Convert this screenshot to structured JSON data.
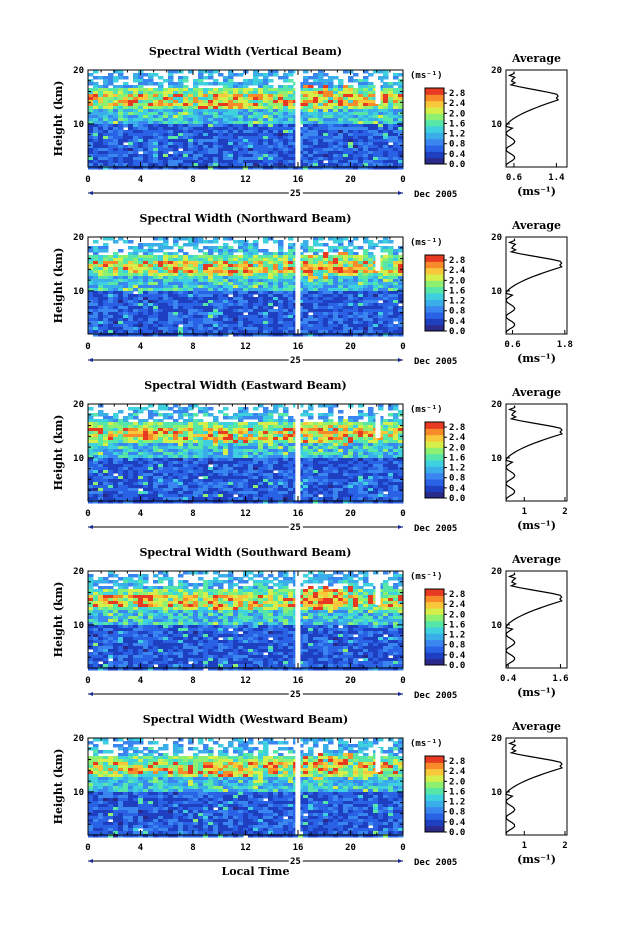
{
  "chart_data": [
    {
      "type": "heatmap",
      "title": "Spectral Width (Vertical Beam)",
      "ylabel": "Height (km)",
      "ylim": [
        2,
        20
      ],
      "yticks": [
        "20",
        "10"
      ],
      "xticks": [
        "0",
        "4",
        "8",
        "12",
        "16",
        "20",
        "0"
      ],
      "xlim": [
        0,
        24
      ],
      "day_label": "25",
      "date_label": "Dec 2005",
      "colorbar": {
        "unit": "(ms⁻¹)",
        "ticks": [
          "2.8",
          "2.4",
          "2.0",
          "1.6",
          "1.2",
          "0.8",
          "0.4",
          "0.0"
        ]
      },
      "average": {
        "title": "Average",
        "xlabel": "(ms⁻¹)",
        "xticks": [
          "0.6",
          "1.4"
        ],
        "yticks": [
          "20",
          "10"
        ],
        "xlim": [
          0.45,
          1.6
        ],
        "peak": 1.45
      }
    },
    {
      "type": "heatmap",
      "title": "Spectral Width (Northward Beam)",
      "ylabel": "Height (km)",
      "ylim": [
        2,
        20
      ],
      "yticks": [
        "20",
        "10"
      ],
      "xticks": [
        "0",
        "4",
        "8",
        "12",
        "16",
        "20",
        "0"
      ],
      "xlim": [
        0,
        24
      ],
      "day_label": "25",
      "date_label": "Dec 2005",
      "colorbar": {
        "unit": "(ms⁻¹)",
        "ticks": [
          "2.8",
          "2.4",
          "2.0",
          "1.6",
          "1.2",
          "0.8",
          "0.4",
          "0.0"
        ]
      },
      "average": {
        "title": "Average",
        "xlabel": "(ms⁻¹)",
        "xticks": [
          "0.6",
          "1.8"
        ],
        "yticks": [
          "20",
          "10"
        ],
        "xlim": [
          0.45,
          1.85
        ],
        "peak": 1.75
      }
    },
    {
      "type": "heatmap",
      "title": "Spectral Width (Eastward Beam)",
      "ylabel": "Height (km)",
      "ylim": [
        2,
        20
      ],
      "yticks": [
        "20",
        "10"
      ],
      "xticks": [
        "0",
        "4",
        "8",
        "12",
        "16",
        "20",
        "0"
      ],
      "xlim": [
        0,
        24
      ],
      "day_label": "25",
      "date_label": "Dec 2005",
      "colorbar": {
        "unit": "(ms⁻¹)",
        "ticks": [
          "2.8",
          "2.4",
          "2.0",
          "1.6",
          "1.2",
          "0.8",
          "0.4",
          "0.0"
        ]
      },
      "average": {
        "title": "Average",
        "xlabel": "(ms⁻¹)",
        "xticks": [
          "1",
          "2"
        ],
        "yticks": [
          "20",
          "10"
        ],
        "xlim": [
          0.55,
          2.05
        ],
        "peak": 1.95
      }
    },
    {
      "type": "heatmap",
      "title": "Spectral Width (Southward Beam)",
      "ylabel": "Height (km)",
      "ylim": [
        2,
        20
      ],
      "yticks": [
        "20",
        "10"
      ],
      "xticks": [
        "0",
        "4",
        "8",
        "12",
        "16",
        "20",
        "0"
      ],
      "xlim": [
        0,
        24
      ],
      "day_label": "25",
      "date_label": "Dec 2005",
      "colorbar": {
        "unit": "(ms⁻¹)",
        "ticks": [
          "2.8",
          "2.4",
          "2.0",
          "1.6",
          "1.2",
          "0.8",
          "0.4",
          "0.0"
        ]
      },
      "average": {
        "title": "Average",
        "xlabel": "(ms⁻¹)",
        "xticks": [
          "0.4",
          "1.6"
        ],
        "yticks": [
          "20",
          "10"
        ],
        "xlim": [
          0.35,
          1.75
        ],
        "peak": 1.65
      }
    },
    {
      "type": "heatmap",
      "title": "Spectral Width (Westward Beam)",
      "ylabel": "Height (km)",
      "ylim": [
        2,
        20
      ],
      "yticks": [
        "20",
        "10"
      ],
      "xticks": [
        "0",
        "4",
        "8",
        "12",
        "16",
        "20",
        "0"
      ],
      "xlim": [
        0,
        24
      ],
      "day_label": "25",
      "date_label": "Dec 2005",
      "xlabel": "Local Time",
      "colorbar": {
        "unit": "(ms⁻¹)",
        "ticks": [
          "2.8",
          "2.4",
          "2.0",
          "1.6",
          "1.2",
          "0.8",
          "0.4",
          "0.0"
        ]
      },
      "average": {
        "title": "Average",
        "xlabel": "(ms⁻¹)",
        "xticks": [
          "1",
          "2"
        ],
        "yticks": [
          "20",
          "10"
        ],
        "xlim": [
          0.55,
          2.05
        ],
        "peak": 1.95
      }
    }
  ]
}
